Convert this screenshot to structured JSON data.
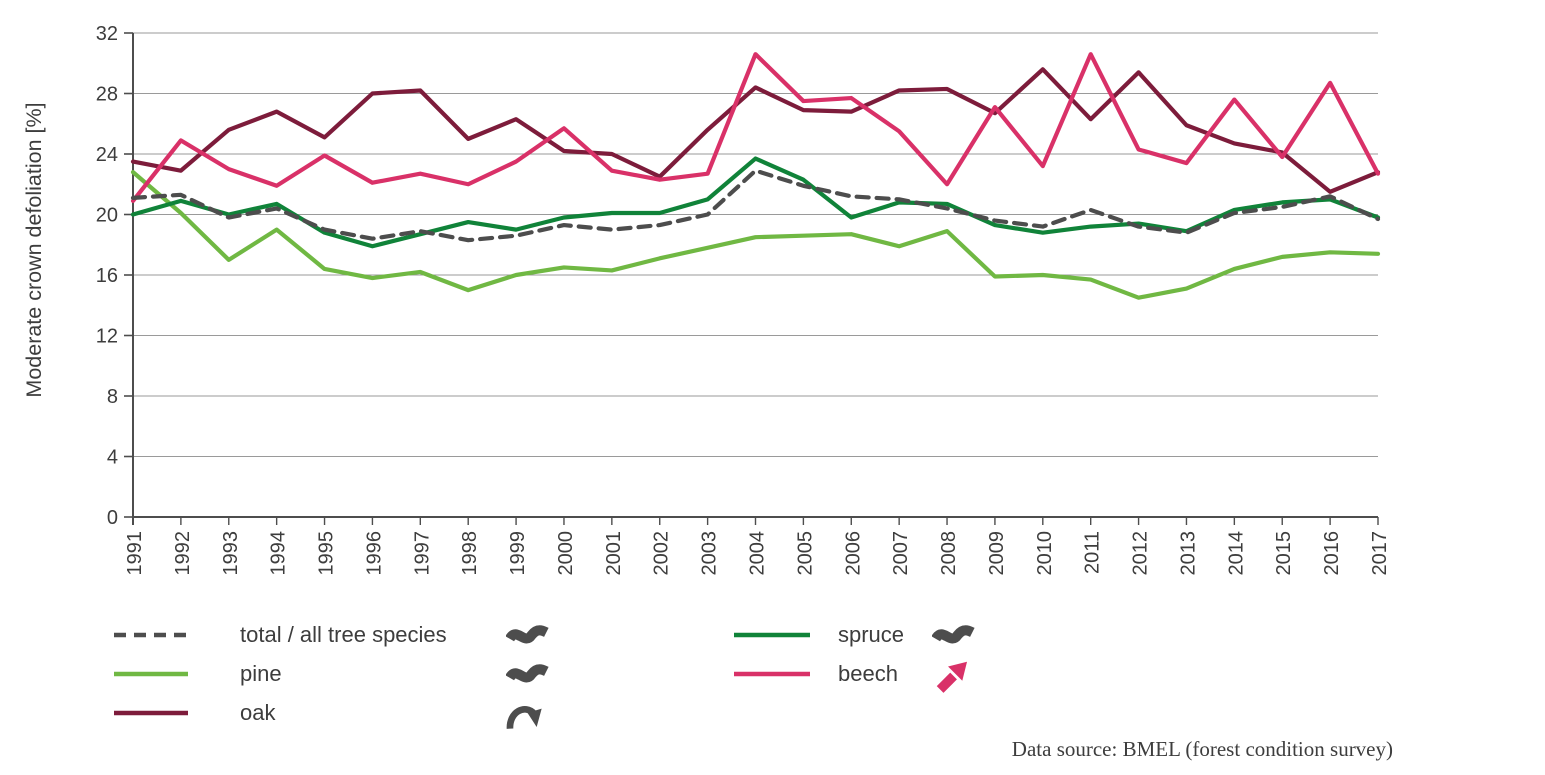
{
  "source_note": "Data source: BMEL (forest condition survey)",
  "colors": {
    "axis": "#4d4d4d",
    "grid": "#9a9a9a",
    "text": "#3d3d3d",
    "icon_gray": "#4d4d4d"
  },
  "chart_data": {
    "type": "line",
    "title": "",
    "xlabel": "",
    "ylabel": "Moderate crown defoliation [%]",
    "ylim": [
      0,
      32
    ],
    "yticks": [
      0,
      4,
      8,
      12,
      16,
      20,
      24,
      28,
      32
    ],
    "grid": true,
    "legend_position": "bottom",
    "x": [
      1991,
      1992,
      1993,
      1994,
      1995,
      1996,
      1997,
      1998,
      1999,
      2000,
      2001,
      2002,
      2003,
      2004,
      2005,
      2006,
      2007,
      2008,
      2009,
      2010,
      2011,
      2012,
      2013,
      2014,
      2015,
      2016,
      2017
    ],
    "series": [
      {
        "name": "total / all tree species",
        "color": "#4d4d4d",
        "dash": "12 8",
        "trend_icon": "wave",
        "values": [
          21.1,
          21.3,
          19.8,
          20.4,
          19.0,
          18.4,
          18.9,
          18.3,
          18.6,
          19.3,
          19.0,
          19.3,
          20.0,
          22.9,
          21.9,
          21.2,
          21.0,
          20.4,
          19.6,
          19.2,
          20.3,
          19.2,
          18.8,
          20.1,
          20.5,
          21.2,
          19.7
        ]
      },
      {
        "name": "pine",
        "color": "#70b843",
        "dash": null,
        "trend_icon": "wave",
        "values": [
          22.8,
          20.1,
          17.0,
          19.0,
          16.4,
          15.8,
          16.2,
          15.0,
          16.0,
          16.5,
          16.3,
          17.1,
          17.8,
          18.5,
          18.6,
          18.7,
          17.9,
          18.9,
          15.9,
          16.0,
          15.7,
          14.5,
          15.1,
          16.4,
          17.2,
          17.5,
          17.4
        ]
      },
      {
        "name": "oak",
        "color": "#7d1c3b",
        "dash": null,
        "trend_icon": "curve-down-arrow",
        "values": [
          23.5,
          22.9,
          25.6,
          26.8,
          25.1,
          28.0,
          28.2,
          25.0,
          26.3,
          24.2,
          24.0,
          22.5,
          25.6,
          28.4,
          26.9,
          26.8,
          28.2,
          28.3,
          26.7,
          29.6,
          26.3,
          29.4,
          25.9,
          24.7,
          24.1,
          21.5,
          22.8
        ]
      },
      {
        "name": "spruce",
        "color": "#108339",
        "dash": null,
        "trend_icon": "wave",
        "values": [
          20.0,
          20.9,
          20.0,
          20.7,
          18.8,
          17.9,
          18.7,
          19.5,
          19.0,
          19.8,
          20.1,
          20.1,
          21.0,
          23.7,
          22.3,
          19.8,
          20.8,
          20.7,
          19.3,
          18.8,
          19.2,
          19.4,
          18.9,
          20.3,
          20.8,
          21.0,
          19.8
        ]
      },
      {
        "name": "beech",
        "color": "#d93168",
        "dash": null,
        "trend_icon": "up-right-arrow",
        "values": [
          20.9,
          24.9,
          23.0,
          21.9,
          23.9,
          22.1,
          22.7,
          22.0,
          23.5,
          25.7,
          22.9,
          22.3,
          22.7,
          30.6,
          27.5,
          27.7,
          25.5,
          22.0,
          27.1,
          23.2,
          30.6,
          24.3,
          23.4,
          27.6,
          23.8,
          28.7,
          22.7
        ]
      }
    ]
  }
}
